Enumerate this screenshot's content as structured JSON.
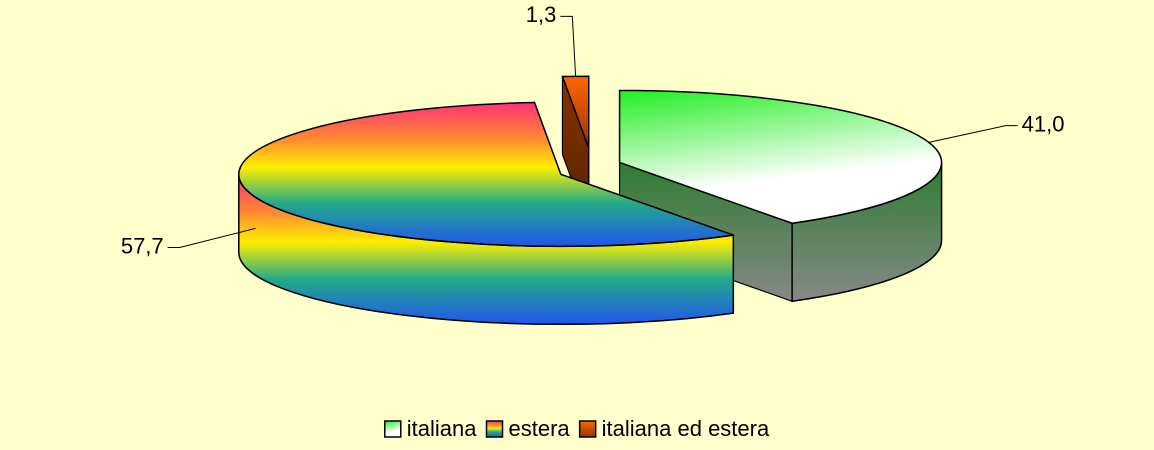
{
  "chart_data": {
    "type": "pie3d",
    "categories": [
      "italiana",
      "estera",
      "italiana ed estera"
    ],
    "values": [
      41.0,
      57.7,
      1.3
    ],
    "value_labels": [
      "41,0",
      "57,7",
      "1,3"
    ],
    "colors": [
      "#22ee22",
      "#ff3377",
      "#ff6600"
    ],
    "legend": "bottom"
  }
}
